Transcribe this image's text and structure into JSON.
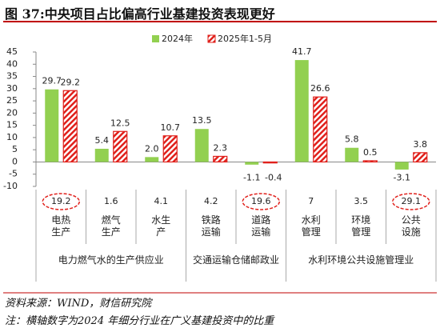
{
  "title": "图 37:中央项目占比偏高行业基建投资表现更好",
  "chart_data": {
    "type": "bar",
    "categories": [
      "电热生产",
      "燃气生产",
      "水生产",
      "铁路运输",
      "道路运输",
      "水利管理",
      "环境管理",
      "公共设施"
    ],
    "series": [
      {
        "name": "2024年",
        "color": "#92d050",
        "values": [
          29.7,
          5.4,
          2.0,
          13.5,
          -1.1,
          41.7,
          5.8,
          -3.1
        ],
        "value_labels": [
          "29.7",
          "5.4",
          "2.0",
          "13.5",
          "-1.1",
          "41.7",
          "5.8",
          "-3.1"
        ]
      },
      {
        "name": "2025年1-5月",
        "color": "#e0201b",
        "hatched": true,
        "values": [
          29.2,
          12.5,
          10.7,
          2.3,
          -0.4,
          26.6,
          0.5,
          3.8
        ]
      }
    ],
    "weights": [
      19.2,
      1.6,
      4.1,
      4.2,
      19.6,
      7,
      3.5,
      29.1
    ],
    "weight_circled": [
      true,
      false,
      false,
      false,
      true,
      false,
      false,
      true
    ],
    "groups": [
      {
        "name": "电力燃气水的生产供应业",
        "count": 3
      },
      {
        "name": "交通运输仓储邮政业",
        "count": 2
      },
      {
        "name": "水利环境公共设施管理业",
        "count": 3
      }
    ],
    "ylim": [
      -10,
      45
    ],
    "yticks": [
      -10,
      -5,
      0,
      5,
      10,
      15,
      20,
      25,
      30,
      35,
      40,
      45
    ],
    "grid": false
  },
  "source": "资料来源：WIND，财信研究院",
  "note": "注：横轴数字为2024 年细分行业在广义基建投资中的比重"
}
